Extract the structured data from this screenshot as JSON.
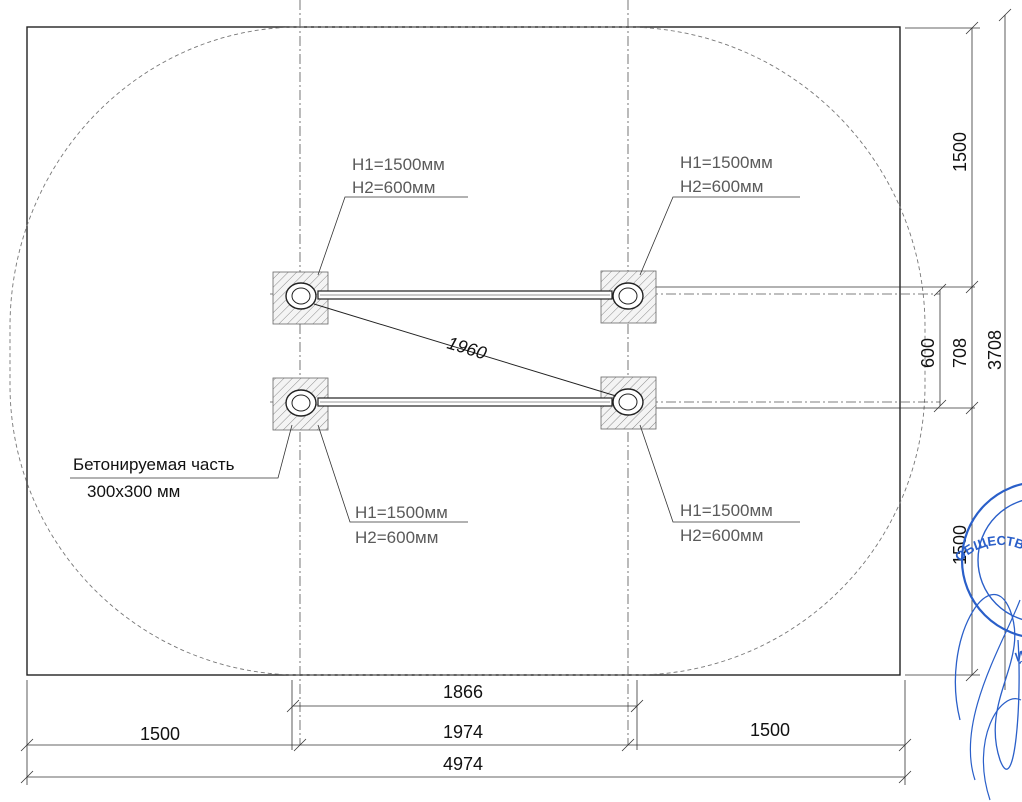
{
  "leader_labels": {
    "callout_top_left": {
      "h1": "H1=1500мм",
      "h2": "H2=600мм"
    },
    "callout_top_right": {
      "h1": "H1=1500мм",
      "h2": "H2=600мм"
    },
    "callout_bottom_left": {
      "h1": "H1=1500мм",
      "h2": "H2=600мм"
    },
    "callout_bottom_right": {
      "h1": "H1=1500мм",
      "h2": "H2=600мм"
    },
    "concrete_note_line1": "Бетонируемая часть",
    "concrete_note_line2": "300х300 мм"
  },
  "dimensions": {
    "diagonal": "1960",
    "inner_span": "1866",
    "axis_span": "1974",
    "left_margin": "1500",
    "right_margin": "1500",
    "total_width": "4974",
    "top_margin": "1500",
    "bar_spacing": "600",
    "axis_spacing": "708",
    "total_height": "3708",
    "bottom_margin": "1500"
  },
  "stamp": {
    "ring_text": "ОБЩЕСТВО С ОГРАНИЧЕННОЙ"
  },
  "colors": {
    "line": "#222222",
    "callout_text": "#5a5a5a",
    "stamp_blue": "#2a5fc9"
  }
}
